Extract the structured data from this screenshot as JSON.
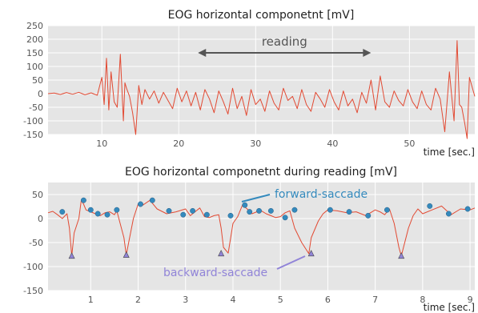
{
  "chart_data": [
    {
      "type": "line",
      "title": "EOG horizontal componetnt [mV]",
      "xlabel": "time [sec.]",
      "ylabel": "",
      "xlim": [
        3,
        58.5
      ],
      "ylim": [
        -150,
        250
      ],
      "xticks": [
        10,
        20,
        30,
        40,
        50
      ],
      "yticks": [
        -150,
        -100,
        -50,
        0,
        50,
        100,
        150,
        200,
        250
      ],
      "grid": true,
      "series": [
        {
          "color": "#e24a33",
          "x": [
            3.0,
            3.8,
            4.6,
            5.4,
            6.2,
            7.0,
            7.8,
            8.6,
            9.4,
            10.0,
            10.3,
            10.6,
            10.9,
            11.2,
            11.6,
            12.0,
            12.4,
            12.8,
            13.0,
            13.2,
            13.6,
            14.0,
            14.4,
            14.8,
            15.2,
            15.6,
            16.2,
            16.8,
            17.4,
            18.0,
            18.6,
            19.2,
            19.8,
            20.4,
            21.0,
            21.6,
            22.2,
            22.8,
            23.4,
            24.0,
            24.6,
            25.2,
            25.8,
            26.4,
            27.0,
            27.6,
            28.2,
            28.8,
            29.4,
            30.0,
            30.6,
            31.2,
            31.8,
            32.4,
            33.0,
            33.6,
            34.2,
            34.8,
            35.4,
            36.0,
            36.6,
            37.2,
            37.8,
            38.4,
            39.0,
            39.6,
            40.2,
            40.8,
            41.4,
            42.0,
            42.6,
            43.2,
            43.8,
            44.4,
            45.0,
            45.6,
            46.2,
            46.8,
            47.4,
            48.0,
            48.6,
            49.2,
            49.8,
            50.4,
            51.0,
            51.6,
            52.2,
            52.8,
            53.4,
            54.0,
            54.6,
            55.2,
            55.8,
            56.2,
            56.5,
            56.8,
            57.2,
            57.5,
            57.8,
            58.2,
            58.5
          ],
          "y": [
            0,
            2,
            -3,
            4,
            -2,
            5,
            -4,
            3,
            -6,
            60,
            -40,
            130,
            -60,
            80,
            -30,
            -50,
            145,
            -100,
            40,
            20,
            -10,
            -70,
            -150,
            30,
            -40,
            15,
            -20,
            10,
            -35,
            5,
            -25,
            -55,
            20,
            -30,
            10,
            -45,
            5,
            -60,
            15,
            -20,
            -70,
            10,
            -30,
            -75,
            20,
            -55,
            -10,
            -80,
            15,
            -40,
            -20,
            -65,
            10,
            -35,
            -60,
            20,
            -25,
            -10,
            -55,
            15,
            -40,
            -65,
            5,
            -20,
            -50,
            15,
            -30,
            -60,
            10,
            -45,
            -20,
            -70,
            5,
            -35,
            50,
            -60,
            65,
            -30,
            -50,
            10,
            -25,
            -45,
            15,
            -30,
            -55,
            10,
            -40,
            -60,
            20,
            -20,
            -140,
            80,
            -100,
            195,
            -40,
            -50,
            -110,
            -165,
            60,
            20,
            -10
          ]
        }
      ],
      "annotations": [
        {
          "text": "reading",
          "x_start": 22.5,
          "x_end": 45.0,
          "y": 150,
          "color": "#555555"
        }
      ]
    },
    {
      "type": "line",
      "title": "EOG horizontal componetnt during reading [mV]",
      "xlabel": "time [sec.]",
      "ylabel": "",
      "xlim": [
        0.1,
        9.1
      ],
      "ylim": [
        -150,
        75
      ],
      "xticks": [
        1,
        2,
        3,
        4,
        5,
        6,
        7,
        8,
        9
      ],
      "yticks": [
        -150,
        -100,
        -50,
        0,
        50
      ],
      "grid": true,
      "series": [
        {
          "color": "#e24a33",
          "x": [
            0.1,
            0.2,
            0.3,
            0.4,
            0.5,
            0.55,
            0.6,
            0.65,
            0.75,
            0.8,
            0.85,
            0.9,
            1.0,
            1.1,
            1.2,
            1.3,
            1.4,
            1.5,
            1.55,
            1.7,
            1.75,
            1.8,
            1.9,
            2.0,
            2.1,
            2.25,
            2.4,
            2.6,
            2.8,
            3.0,
            3.1,
            3.2,
            3.3,
            3.4,
            3.5,
            3.6,
            3.7,
            3.75,
            3.8,
            3.9,
            4.0,
            4.1,
            4.2,
            4.3,
            4.4,
            4.5,
            4.6,
            4.7,
            4.8,
            4.9,
            5.0,
            5.1,
            5.2,
            5.3,
            5.45,
            5.6,
            5.65,
            5.8,
            5.9,
            6.0,
            6.2,
            6.4,
            6.6,
            6.8,
            7.0,
            7.1,
            7.2,
            7.3,
            7.4,
            7.5,
            7.55,
            7.7,
            7.8,
            7.9,
            8.0,
            8.2,
            8.4,
            8.6,
            8.8,
            9.0,
            9.1
          ],
          "y": [
            12,
            15,
            8,
            0,
            10,
            -20,
            -78,
            -30,
            0,
            38,
            30,
            18,
            14,
            10,
            6,
            12,
            14,
            8,
            16,
            -40,
            -76,
            -50,
            0,
            30,
            28,
            38,
            20,
            10,
            14,
            20,
            6,
            14,
            22,
            4,
            2,
            6,
            8,
            -20,
            -60,
            -72,
            -10,
            4,
            28,
            20,
            10,
            14,
            16,
            10,
            6,
            2,
            4,
            12,
            16,
            -20,
            -50,
            -73,
            -40,
            -5,
            10,
            18,
            16,
            12,
            14,
            6,
            18,
            14,
            8,
            20,
            -10,
            -60,
            -78,
            -20,
            6,
            20,
            10,
            18,
            26,
            8,
            20,
            18,
            22
          ]
        },
        {
          "name": "forward-saccade",
          "type": "scatter",
          "color": "#348abd",
          "marker": "circle",
          "x": [
            0.4,
            0.85,
            1.0,
            1.15,
            1.35,
            1.55,
            2.05,
            2.3,
            2.65,
            2.95,
            3.15,
            3.45,
            3.95,
            4.25,
            4.35,
            4.55,
            4.8,
            5.1,
            5.3,
            6.05,
            6.45,
            6.85,
            7.25,
            8.15,
            8.55,
            8.95
          ],
          "y": [
            14,
            38,
            18,
            10,
            8,
            18,
            30,
            38,
            16,
            8,
            16,
            8,
            6,
            28,
            14,
            16,
            16,
            2,
            18,
            18,
            14,
            6,
            18,
            26,
            10,
            20
          ]
        },
        {
          "name": "backward-saccade",
          "type": "scatter",
          "color": "#9184d8",
          "marker": "triangle",
          "x": [
            0.6,
            1.75,
            3.75,
            5.65,
            7.55
          ],
          "y": [
            -78,
            -76,
            -73,
            -73,
            -78
          ]
        }
      ],
      "annotations": [
        {
          "text": "forward-saccade",
          "color": "#348abd"
        },
        {
          "text": "backward-saccade",
          "color": "#9184d8"
        }
      ]
    }
  ]
}
